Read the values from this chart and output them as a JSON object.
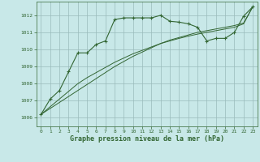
{
  "xlabel": "Graphe pression niveau de la mer (hPa)",
  "background_color": "#c8e8e8",
  "grid_color": "#99bbbb",
  "line_color": "#336633",
  "x_values": [
    0,
    1,
    2,
    3,
    4,
    5,
    6,
    7,
    8,
    9,
    10,
    11,
    12,
    13,
    14,
    15,
    16,
    17,
    18,
    19,
    20,
    21,
    22,
    23
  ],
  "y_main": [
    1006.2,
    1007.1,
    1007.6,
    1008.7,
    1009.8,
    1009.8,
    1010.3,
    1010.5,
    1011.75,
    1011.85,
    1011.85,
    1011.85,
    1011.85,
    1012.0,
    1011.65,
    1011.6,
    1011.5,
    1011.3,
    1010.5,
    1010.65,
    1010.65,
    1011.0,
    1011.95,
    1012.5
  ],
  "y_line1": [
    1006.2,
    1006.55,
    1006.9,
    1007.25,
    1007.6,
    1007.95,
    1008.3,
    1008.65,
    1009.0,
    1009.3,
    1009.6,
    1009.85,
    1010.1,
    1010.35,
    1010.55,
    1010.7,
    1010.85,
    1011.0,
    1011.1,
    1011.2,
    1011.3,
    1011.4,
    1011.55,
    1012.5
  ],
  "y_line2": [
    1006.2,
    1006.65,
    1007.1,
    1007.55,
    1008.0,
    1008.35,
    1008.65,
    1008.95,
    1009.25,
    1009.5,
    1009.75,
    1009.95,
    1010.15,
    1010.35,
    1010.5,
    1010.65,
    1010.78,
    1010.9,
    1011.0,
    1011.1,
    1011.2,
    1011.3,
    1011.5,
    1012.5
  ],
  "ylim": [
    1005.5,
    1012.8
  ],
  "xlim": [
    -0.5,
    23.5
  ],
  "yticks": [
    1006,
    1007,
    1008,
    1009,
    1010,
    1011,
    1012
  ],
  "xticks": [
    0,
    1,
    2,
    3,
    4,
    5,
    6,
    7,
    8,
    9,
    10,
    11,
    12,
    13,
    14,
    15,
    16,
    17,
    18,
    19,
    20,
    21,
    22,
    23
  ]
}
